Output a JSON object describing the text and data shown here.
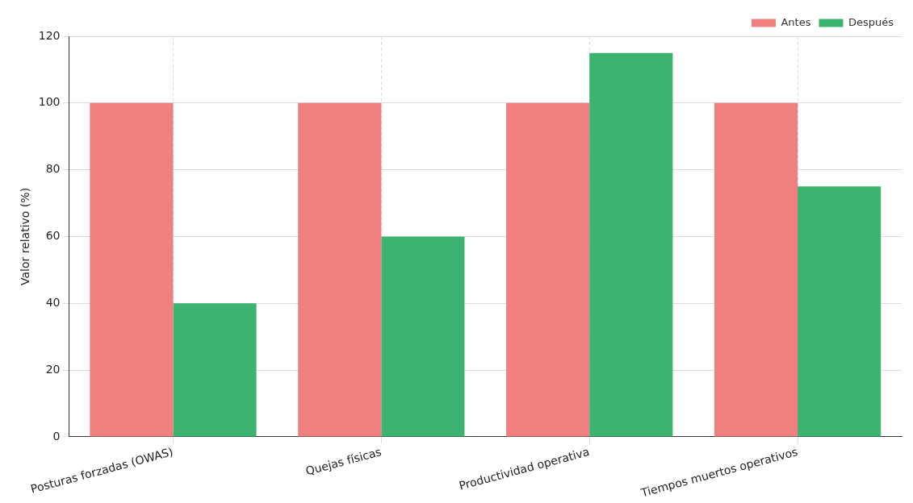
{
  "chart_data": {
    "type": "bar",
    "ylabel": "Valor relativo (%)",
    "categories": [
      "Posturas forzadas (OWAS)",
      "Quejas físicas",
      "Productividad operativa",
      "Tiempos muertos operativos"
    ],
    "series": [
      {
        "name": "Antes",
        "color": "#f08080",
        "values": [
          100,
          100,
          100,
          100
        ]
      },
      {
        "name": "Después",
        "color": "#3cb371",
        "values": [
          40,
          60,
          115,
          75
        ]
      }
    ],
    "ylim": [
      0,
      120
    ],
    "yticks": [
      0,
      20,
      40,
      60,
      80,
      100,
      120
    ],
    "grid": true,
    "legend": "top right"
  }
}
